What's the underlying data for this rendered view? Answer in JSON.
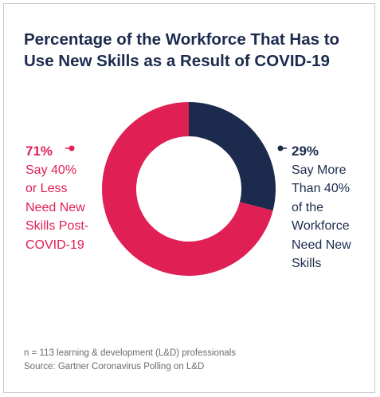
{
  "chart_data": {
    "type": "pie",
    "title": "Percentage of the Workforce That Has to Use New Skills as a Result of COVID-19",
    "categories": [
      "29%",
      "71%"
    ],
    "values": [
      29,
      71
    ],
    "series": [
      {
        "name": "Say More Than 40% of the Workforce Need New Skills",
        "value": 29,
        "color": "#1c2b4d"
      },
      {
        "name": "Say 40% or Less Need New Skills Post-COVID-19",
        "value": 71,
        "color": "#e01f55"
      }
    ],
    "donut": true
  },
  "labels": {
    "left": {
      "pct": "71%",
      "desc": "Say 40%\nor Less\nNeed New\nSkills Post-\nCOVID-19"
    },
    "right": {
      "pct": "29%",
      "desc": "Say More\nThan 40%\nof the\nWorkforce\nNeed New\nSkills"
    }
  },
  "footnote": {
    "sample": "n = 113 learning & development (L&D) professionals",
    "source": "Source: Gartner Coronavirus Polling on L&D"
  }
}
